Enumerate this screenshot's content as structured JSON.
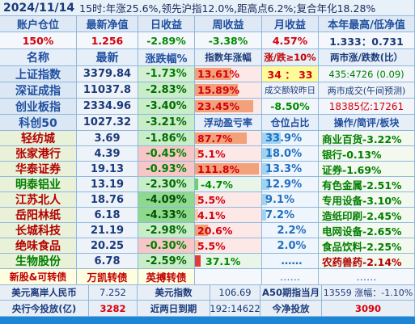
{
  "top_line": {
    "date": "2024/11/14",
    "summary": "15时:年涨25.6%,领先沪指12.0%,距高点6.2%;复合年化18.28%"
  },
  "summary_headers": [
    "账户仓位",
    "最新净值",
    "日收益",
    "周收益",
    "月收益",
    "本年最高/低净值"
  ],
  "summary_values": {
    "position": "150%",
    "nav": "1.256",
    "daily": "-2.89%",
    "weekly": "-3.38%",
    "monthly": "4.57%",
    "year_hilo": "1.333：0.731"
  },
  "index_headers": {
    "name": "名称",
    "latest": "最新",
    "change": "涨跌幅%",
    "annual": "指数年涨幅",
    "updown": "涨/跌≥10%",
    "ratio": "两市涨/跌数(比）"
  },
  "indices": [
    {
      "name": "上证指数",
      "latest": "3379.84",
      "change": "-1.73%",
      "col4": "13.61%",
      "col5": "34 ： 33",
      "col6": "435:4726 (0.09)"
    },
    {
      "name": "深证成指",
      "latest": "11037.8",
      "change": "-2.83%",
      "col4": "15.89%",
      "col5": "成交额较昨日",
      "col6": "两市成交(午间预测)"
    },
    {
      "name": "创业板指",
      "latest": "2334.96",
      "change": "-3.40%",
      "col4": "23.45%",
      "col5": "-8.50%",
      "col6": "18385亿:17261"
    },
    {
      "name": "科创50",
      "latest": "1027.32",
      "change": "-3.21%",
      "col4": "浮动盈亏率",
      "col5": "仓位占比",
      "col6": "操作/简评/板块"
    }
  ],
  "stocks": [
    {
      "name": "轻纺城",
      "price": "3.69",
      "change": "-1.86%",
      "float_pl": "87.7%",
      "weight": "33.9%",
      "note": "商业百货-3.22%"
    },
    {
      "name": "张家港行",
      "price": "4.39",
      "change": "-0.45%",
      "float_pl": "5.1%",
      "weight": "18.0%",
      "note": "银行-0.13%"
    },
    {
      "name": "华泰证券",
      "price": "19.13",
      "change": "-0.93%",
      "float_pl": "111.8%",
      "weight": "13.3%",
      "note": "证券-1.69%"
    },
    {
      "name": "明泰铝业",
      "price": "13.19",
      "change": "-2.30%",
      "float_pl": "-4.7%",
      "weight": "12.9%",
      "note": "有色金属-2.51%"
    },
    {
      "name": "江苏北人",
      "price": "18.76",
      "change": "-4.09%",
      "float_pl": "5.5%",
      "weight": "9.1%",
      "note": "专用设备-3.10%"
    },
    {
      "name": "岳阳林纸",
      "price": "6.18",
      "change": "-4.33%",
      "float_pl": "4.1%",
      "weight": "7.2%",
      "note": "造纸印刷-2.45%"
    },
    {
      "name": "长城科技",
      "price": "21.19",
      "change": "-2.98%",
      "float_pl": "20.6%",
      "weight": "2.2%",
      "note": "电网设备-2.65%"
    },
    {
      "name": "绝味食品",
      "price": "20.25",
      "change": "-0.30%",
      "float_pl": "5.5%",
      "weight": "2.0%",
      "note": "食品饮料-2.25%"
    },
    {
      "name": "生物股份",
      "price": "6.78",
      "change": "-2.59%",
      "float_pl": "37.1%",
      "weight": "……",
      "note": "农药兽药-2.14%"
    }
  ],
  "misc_row": [
    "新股&可转债",
    "万凯转债",
    "英搏转债",
    "",
    "……",
    "……"
  ],
  "bottom1": {
    "l1": "美元离岸人民币",
    "v1": "7.252",
    "l2": "美元指数",
    "v2": "106.69",
    "l3": "A50期指当月",
    "v3": "13559 涨幅：-1.10%"
  },
  "bottom2": {
    "l1": "央行今投放(亿)",
    "v1": "3282",
    "l2": "近两日到期",
    "v2": "192:14622",
    "l3": "今净投放",
    "v3": "3090"
  }
}
